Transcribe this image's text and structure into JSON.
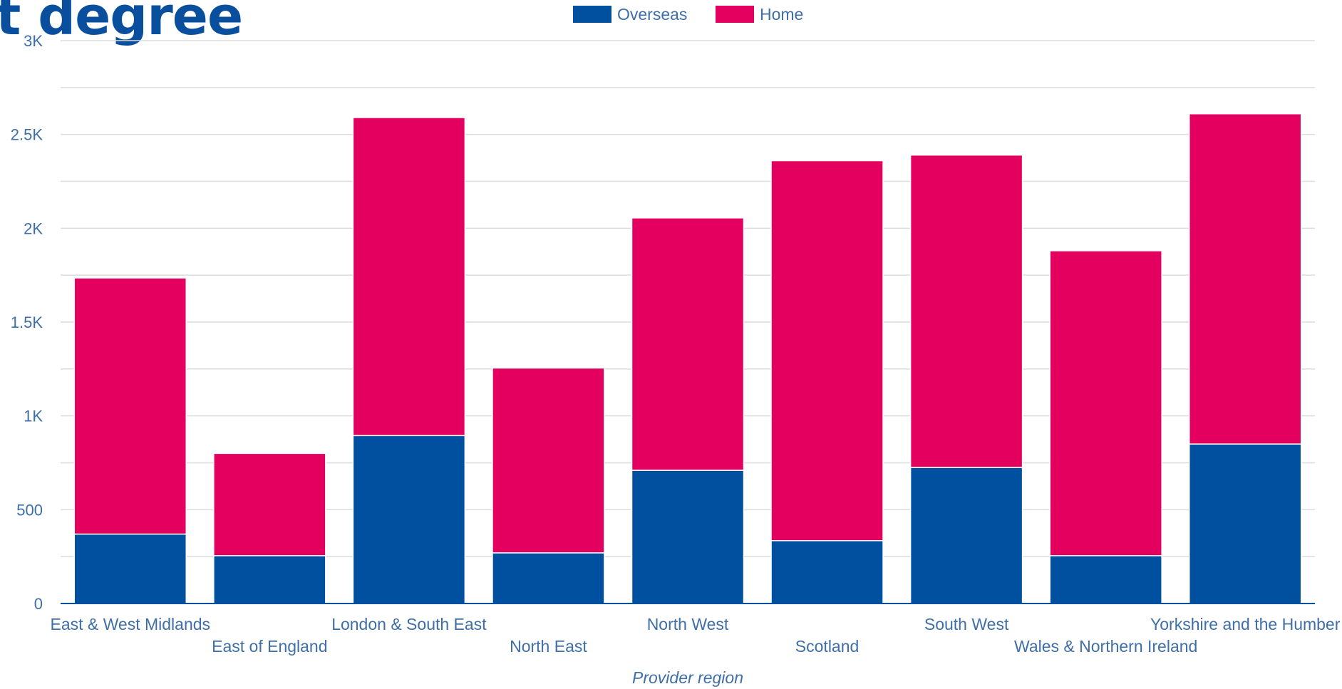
{
  "page": {
    "title_fragment": "t degree"
  },
  "chart_data": {
    "type": "bar",
    "stacked": true,
    "title": "",
    "xlabel": "Provider region",
    "ylabel": "",
    "ylim": [
      0,
      3000
    ],
    "y_ticks": [
      {
        "value": 0,
        "label": "0"
      },
      {
        "value": 500,
        "label": "500"
      },
      {
        "value": 1000,
        "label": "1K"
      },
      {
        "value": 1500,
        "label": "1.5K"
      },
      {
        "value": 2000,
        "label": "2K"
      },
      {
        "value": 2500,
        "label": "2.5K"
      },
      {
        "value": 3000,
        "label": "3K"
      }
    ],
    "grid": true,
    "legend_position": "top-center",
    "categories": [
      "East & West Midlands",
      "East of England",
      "London & South East",
      "North East",
      "North West",
      "Scotland",
      "South West",
      "Wales & Northern Ireland",
      "Yorkshire and the Humber"
    ],
    "series": [
      {
        "name": "Overseas",
        "color": "#0050a0",
        "values": [
          370,
          255,
          895,
          270,
          710,
          335,
          725,
          255,
          850
        ]
      },
      {
        "name": "Home",
        "color": "#e3005f",
        "values": [
          1365,
          545,
          1695,
          985,
          1345,
          2025,
          1665,
          1625,
          1760
        ]
      }
    ]
  }
}
